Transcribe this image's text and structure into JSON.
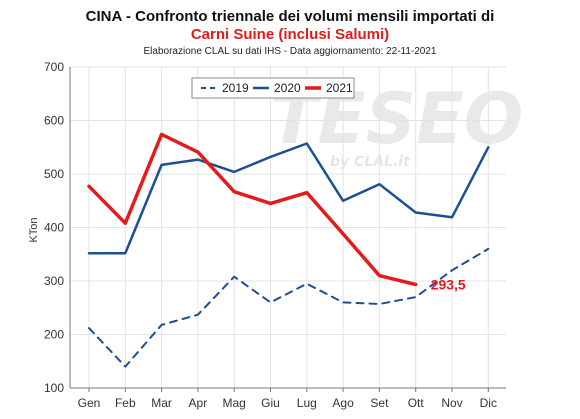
{
  "header": {
    "title_line1": "CINA - Confronto triennale dei volumi mensili importati di",
    "title_line2": "Carni Suine (inclusi Salumi)",
    "subtitle": "Elaborazione CLAL su dati IHS - Data aggiornamento: 22-11-2021"
  },
  "watermark": {
    "main": "TESEO",
    "sub": "by CLAL.it"
  },
  "colors": {
    "dark_blue": "#1d4f91",
    "red": "#e31b1b",
    "grid": "#e3e3e3",
    "axis": "#777777"
  },
  "chart_data": {
    "type": "line",
    "title": "CINA - Confronto triennale dei volumi mensili importati di Carni Suine (inclusi Salumi)",
    "subtitle": "Elaborazione CLAL su dati IHS - Data aggiornamento: 22-11-2021",
    "xlabel": "",
    "ylabel": "KTon",
    "ylim": [
      100,
      700
    ],
    "yticks": [
      100,
      200,
      300,
      400,
      500,
      600,
      700
    ],
    "grid": true,
    "legend_position": "top-center",
    "categories": [
      "Gen",
      "Feb",
      "Mar",
      "Apr",
      "Mag",
      "Giu",
      "Lug",
      "Ago",
      "Set",
      "Ott",
      "Nov",
      "Dic"
    ],
    "series": [
      {
        "name": "2019",
        "style": "dashed",
        "color": "#1d4f91",
        "values": [
          212,
          140,
          218,
          237,
          308,
          260,
          295,
          260,
          257,
          270,
          320,
          360
        ]
      },
      {
        "name": "2020",
        "style": "solid",
        "color": "#1d4f91",
        "values": [
          352,
          352,
          517,
          527,
          504,
          532,
          557,
          450,
          481,
          428,
          419,
          550
        ]
      },
      {
        "name": "2021",
        "style": "solid-thick",
        "color": "#e31b1b",
        "values": [
          477,
          408,
          574,
          541,
          467,
          445,
          465,
          388,
          310,
          293.5,
          null,
          null
        ]
      }
    ],
    "annotations": [
      {
        "series": "2021",
        "category": "Ott",
        "text": "293,5"
      }
    ]
  }
}
